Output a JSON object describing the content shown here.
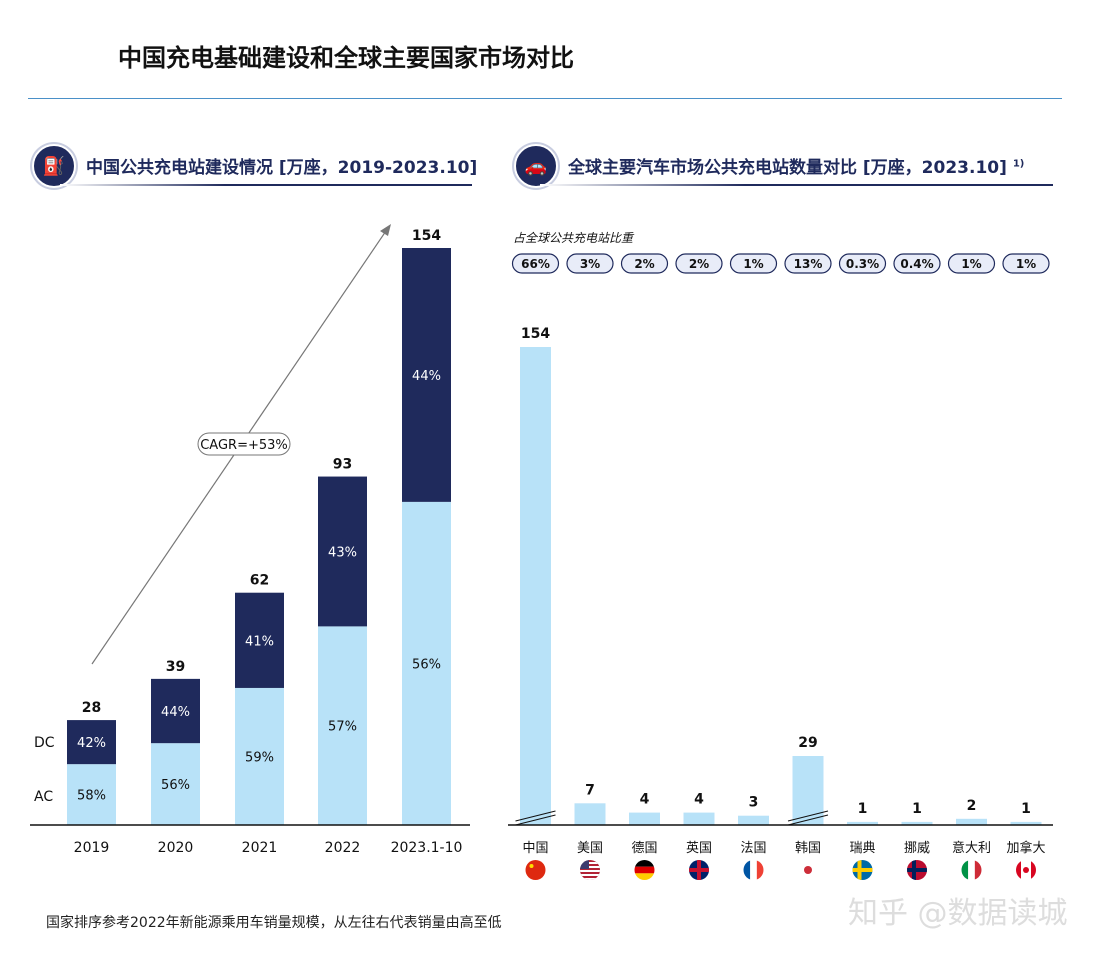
{
  "title": "中国充电基础建设和全球主要国家市场对比",
  "left_section": {
    "title": "中国公共充电站建设情况 [万座，2019-2023.10]",
    "icon": "charging-station-icon"
  },
  "right_section": {
    "title": "全球主要汽车市场公共充电站数量对比 [万座，2023.10]",
    "footnote_mark": "1)",
    "icon": "electric-car-icon",
    "share_label": "占全球公共充电站比重"
  },
  "footnote": "国家排序参考2022年新能源乘用车销量规模，从左往右代表销量由高至低",
  "watermark": "知乎 @数据读城",
  "colors": {
    "dc": "#1f2a5c",
    "ac": "#b8e2f8",
    "accent": "#1f2a5c"
  },
  "chart_data": [
    {
      "type": "bar",
      "stacked": true,
      "categories": [
        "2019",
        "2020",
        "2021",
        "2022",
        "2023.1-10"
      ],
      "totals": [
        28,
        39,
        62,
        93,
        154
      ],
      "series": [
        {
          "name": "AC",
          "values_pct": [
            58,
            56,
            59,
            57,
            56
          ]
        },
        {
          "name": "DC",
          "values_pct": [
            42,
            44,
            41,
            43,
            44
          ]
        }
      ],
      "series_labels": [
        "AC",
        "DC"
      ],
      "annotation": "CAGR=+53%"
    },
    {
      "type": "bar",
      "categories": [
        "中国",
        "美国",
        "德国",
        "英国",
        "法国",
        "韩国",
        "瑞典",
        "挪威",
        "意大利",
        "加拿大"
      ],
      "values": [
        154,
        7,
        4,
        4,
        3,
        29,
        1,
        1,
        2,
        1
      ],
      "shares": [
        "66%",
        "3%",
        "2%",
        "2%",
        "1%",
        "13%",
        "0.3%",
        "0.4%",
        "1%",
        "1%"
      ],
      "broken_axis": [
        "中国",
        "韩国"
      ],
      "flags": [
        "cn",
        "us",
        "de",
        "gb",
        "fr",
        "kr",
        "se",
        "no",
        "it",
        "ca"
      ]
    }
  ]
}
